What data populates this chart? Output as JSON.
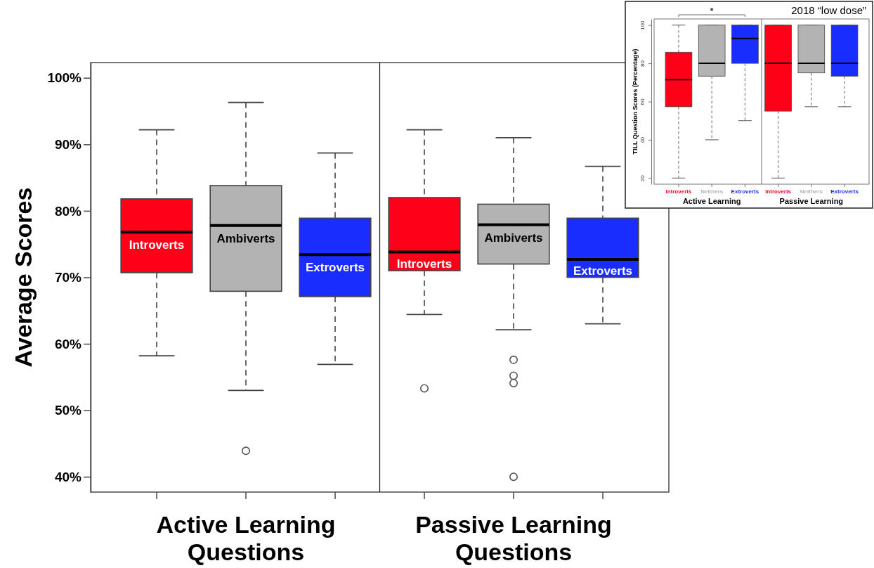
{
  "chart_data": [
    {
      "type": "box",
      "ylabel": "Average Scores",
      "categories": [
        "Active Learning Questions",
        "Passive Learning Questions"
      ],
      "series": [
        {
          "name": "Introverts",
          "color": "#ff0019",
          "boxes": [
            {
              "low": 58.2,
              "q1": 70.7,
              "median": 76.8,
              "q3": 81.8,
              "high": 92.2
            },
            {
              "low": 64.4,
              "q1": 71.0,
              "median": 73.8,
              "q3": 82.0,
              "high": 92.2,
              "outliers": [
                53.3
              ]
            }
          ]
        },
        {
          "name": "Ambiverts",
          "color": "#b3b3b3",
          "boxes": [
            {
              "low": 53.0,
              "q1": 67.9,
              "median": 77.8,
              "q3": 83.8,
              "high": 96.3,
              "outliers": [
                43.9
              ]
            },
            {
              "low": 62.1,
              "q1": 72.0,
              "median": 77.9,
              "q3": 81.0,
              "high": 91.0,
              "outliers": [
                57.6,
                55.2,
                54.1,
                40.0
              ]
            }
          ]
        },
        {
          "name": "Extroverts",
          "color": "#1a2dff",
          "boxes": [
            {
              "low": 56.9,
              "q1": 67.1,
              "median": 73.4,
              "q3": 78.9,
              "high": 88.7
            },
            {
              "low": 63.0,
              "q1": 70.0,
              "median": 72.7,
              "q3": 78.9,
              "high": 86.7
            }
          ]
        }
      ],
      "ylim": [
        37.7,
        102.3
      ],
      "yticks": [
        {
          "value": 40,
          "label": "40%"
        },
        {
          "value": 50,
          "label": "50%"
        },
        {
          "value": 60,
          "label": "60%"
        },
        {
          "value": 70,
          "label": "70%"
        },
        {
          "value": 80,
          "label": "80%"
        },
        {
          "value": 90,
          "label": "90%"
        },
        {
          "value": 100,
          "label": "100%"
        }
      ]
    },
    {
      "type": "box",
      "title": "2018 “low dose”",
      "ylabel": "TILL Question Scores (Percentage)",
      "categories": [
        "Active Learning",
        "Passive Learning"
      ],
      "series": [
        {
          "name": "Introverts",
          "color": "#ff0019",
          "boxes": [
            {
              "low": 20,
              "q1": 57.3,
              "median": 71.5,
              "q3": 85.8,
              "high": 100
            },
            {
              "low": 20,
              "q1": 55,
              "median": 80,
              "q3": 100,
              "high": 100
            }
          ]
        },
        {
          "name": "Neithers",
          "color": "#b3b3b3",
          "boxes": [
            {
              "low": 40,
              "q1": 73.3,
              "median": 80,
              "q3": 100,
              "high": 100
            },
            {
              "low": 57.3,
              "q1": 75,
              "median": 80,
              "q3": 100,
              "high": 100
            }
          ]
        },
        {
          "name": "Extroverts",
          "color": "#1a2dff",
          "boxes": [
            {
              "low": 50,
              "q1": 80,
              "median": 93,
              "q3": 100,
              "high": 100
            },
            {
              "low": 57.3,
              "q1": 73.3,
              "median": 80,
              "q3": 100,
              "high": 100
            }
          ]
        }
      ],
      "ylim": [
        16.8,
        103.2
      ],
      "yticks": [
        20,
        40,
        60,
        80,
        100
      ],
      "annotations": [
        "*"
      ]
    }
  ]
}
